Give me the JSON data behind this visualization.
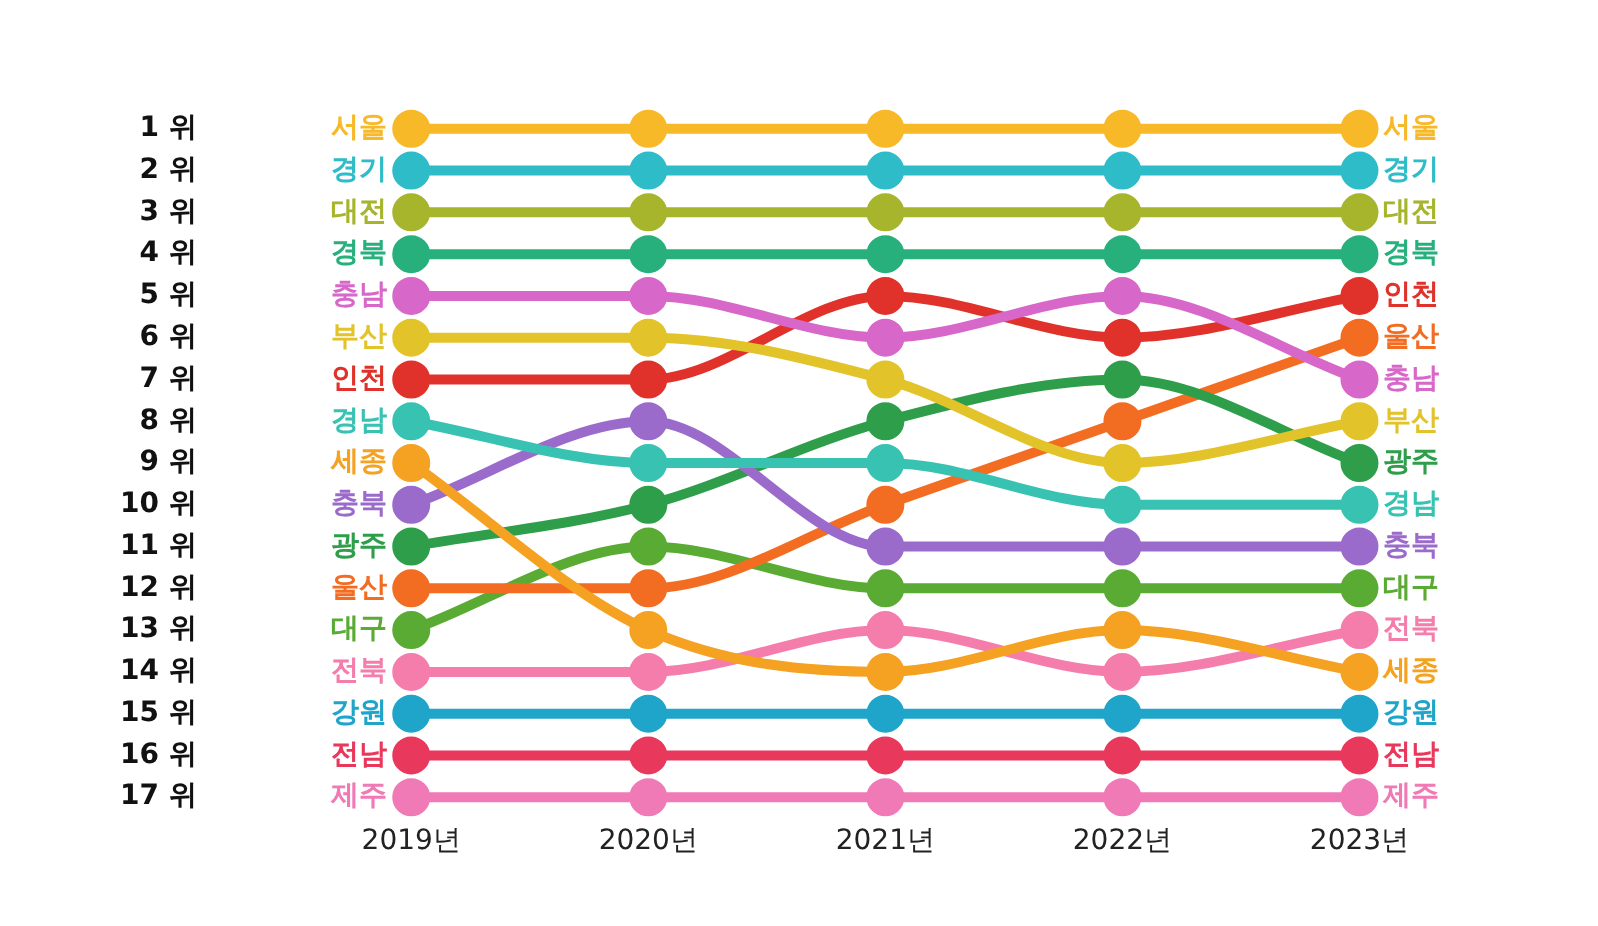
{
  "chart_data": {
    "type": "line",
    "categories": [
      "2019년",
      "2020년",
      "2021년",
      "2022년",
      "2023년"
    ],
    "ylim": [
      17,
      1
    ],
    "yticks": [
      {
        "value": 1,
        "label": "1 위"
      },
      {
        "value": 2,
        "label": "2 위"
      },
      {
        "value": 3,
        "label": "3 위"
      },
      {
        "value": 4,
        "label": "4 위"
      },
      {
        "value": 5,
        "label": "5 위"
      },
      {
        "value": 6,
        "label": "6 위"
      },
      {
        "value": 7,
        "label": "7 위"
      },
      {
        "value": 8,
        "label": "8 위"
      },
      {
        "value": 9,
        "label": "9 위"
      },
      {
        "value": 10,
        "label": "10 위"
      },
      {
        "value": 11,
        "label": "11 위"
      },
      {
        "value": 12,
        "label": "12 위"
      },
      {
        "value": 13,
        "label": "13 위"
      },
      {
        "value": 14,
        "label": "14 위"
      },
      {
        "value": 15,
        "label": "15 위"
      },
      {
        "value": 16,
        "label": "16 위"
      },
      {
        "value": 17,
        "label": "17 위"
      }
    ],
    "grid": false,
    "legend": false,
    "marker": "circle",
    "line_style": "solid",
    "series": [
      {
        "name": "서울",
        "color": "#f7b928",
        "values": [
          1,
          1,
          1,
          1,
          1
        ]
      },
      {
        "name": "경기",
        "color": "#2ebcc8",
        "values": [
          2,
          2,
          2,
          2,
          2
        ]
      },
      {
        "name": "대전",
        "color": "#a6b52c",
        "values": [
          3,
          3,
          3,
          3,
          3
        ]
      },
      {
        "name": "경북",
        "color": "#27b07c",
        "values": [
          4,
          4,
          4,
          4,
          4
        ]
      },
      {
        "name": "충남",
        "color": "#d767c9",
        "values": [
          5,
          5,
          6,
          5,
          7
        ]
      },
      {
        "name": "부산",
        "color": "#e2c32a",
        "values": [
          6,
          6,
          7,
          9,
          8
        ]
      },
      {
        "name": "인천",
        "color": "#e0322a",
        "values": [
          7,
          7,
          5,
          6,
          5
        ]
      },
      {
        "name": "경남",
        "color": "#38c2b2",
        "values": [
          8,
          9,
          9,
          10,
          10
        ]
      },
      {
        "name": "세종",
        "color": "#f5a121",
        "values": [
          9,
          13,
          14,
          13,
          14
        ]
      },
      {
        "name": "충북",
        "color": "#9b6bcb",
        "values": [
          10,
          8,
          11,
          11,
          11
        ]
      },
      {
        "name": "광주",
        "color": "#2e9e4a",
        "values": [
          11,
          10,
          8,
          7,
          9
        ]
      },
      {
        "name": "울산",
        "color": "#f26c22",
        "values": [
          12,
          12,
          10,
          8,
          6
        ]
      },
      {
        "name": "대구",
        "color": "#5aab34",
        "values": [
          13,
          11,
          12,
          12,
          12
        ]
      },
      {
        "name": "전북",
        "color": "#f47dac",
        "values": [
          14,
          14,
          13,
          14,
          13
        ]
      },
      {
        "name": "강원",
        "color": "#1fa5c9",
        "values": [
          15,
          15,
          15,
          15,
          15
        ]
      },
      {
        "name": "전남",
        "color": "#e8385c",
        "values": [
          16,
          16,
          16,
          16,
          16
        ]
      },
      {
        "name": "제주",
        "color": "#f07ab6",
        "values": [
          17,
          17,
          17,
          17,
          17
        ]
      }
    ]
  }
}
